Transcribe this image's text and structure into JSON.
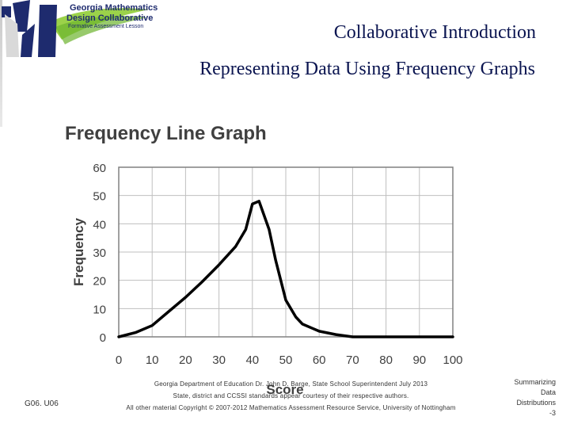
{
  "header": {
    "logo_lines": [
      "Georgia Mathematics",
      "Design Collaborative",
      "Formative Assessment Lesson"
    ],
    "title": "Collaborative Introduction",
    "subtitle": "Representing Data Using Frequency Graphs"
  },
  "chart_data": {
    "type": "line",
    "title": "Frequency Line Graph",
    "xlabel": "Score",
    "ylabel": "Frequency",
    "xlim": [
      0,
      100
    ],
    "ylim": [
      0,
      60
    ],
    "x_ticks": [
      "0",
      "10",
      "20",
      "30",
      "40",
      "50",
      "60",
      "70",
      "80",
      "90",
      "100"
    ],
    "y_ticks": [
      "60",
      "50",
      "40",
      "30",
      "20",
      "10",
      "0"
    ],
    "grid": true,
    "series": [
      {
        "x": [
          0,
          5,
          10,
          15,
          20,
          25,
          30,
          35,
          38,
          40,
          42,
          45,
          47,
          50,
          53,
          55,
          58,
          60,
          65,
          70,
          80,
          90,
          100
        ],
        "y": [
          0,
          1.5,
          4,
          9,
          14,
          19.5,
          25.5,
          32,
          38,
          47,
          48,
          38,
          27,
          13,
          7,
          4.5,
          3,
          2,
          0.8,
          0,
          0,
          0,
          0
        ]
      }
    ],
    "colors": {
      "line": "#000000",
      "grid": "#bfbfbf",
      "frame": "#808080"
    }
  },
  "footer": {
    "code": "G06. U06",
    "credits": [
      "Georgia Department of Education Dr. John D. Barge, State School Superintendent July 2013",
      "State, district and CCSSI standards appear courtesy of their respective authors.",
      "All other material Copyright © 2007-2012 Mathematics Assessment Resource Service, University of Nottingham"
    ],
    "slide_label": [
      "Summarizing",
      "Data",
      "Distributions",
      "-3"
    ]
  }
}
